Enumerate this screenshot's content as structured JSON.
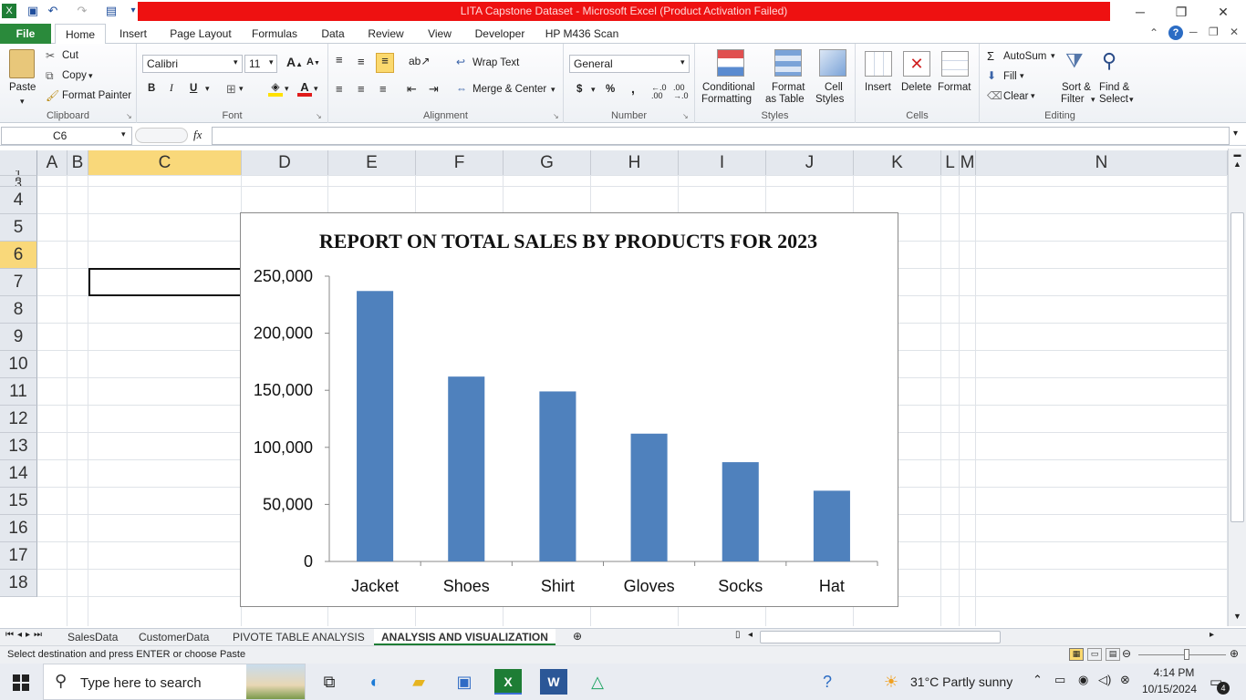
{
  "window": {
    "title": "LITA Capstone Dataset  -  Microsoft Excel (Product Activation Failed)"
  },
  "tabs": [
    {
      "label": "File"
    },
    {
      "label": "Home"
    },
    {
      "label": "Insert"
    },
    {
      "label": "Page Layout"
    },
    {
      "label": "Formulas"
    },
    {
      "label": "Data"
    },
    {
      "label": "Review"
    },
    {
      "label": "View"
    },
    {
      "label": "Developer"
    },
    {
      "label": "HP M436 Scan"
    }
  ],
  "ribbon": {
    "clipboard": {
      "paste": "Paste",
      "cut": "Cut",
      "copy": "Copy",
      "format_painter": "Format Painter",
      "label": "Clipboard"
    },
    "font": {
      "name": "Calibri",
      "size": "11",
      "bold": "B",
      "italic": "I",
      "underline": "U",
      "label": "Font"
    },
    "alignment": {
      "wrap_text": "Wrap Text",
      "merge_center": "Merge & Center",
      "label": "Alignment"
    },
    "number": {
      "format": "General",
      "currency": "$",
      "percent": "%",
      "comma": ",",
      "label": "Number"
    },
    "styles": {
      "conditional1": "Conditional",
      "conditional2": "Formatting",
      "format_table1": "Format",
      "format_table2": "as Table",
      "cell_styles1": "Cell",
      "cell_styles2": "Styles",
      "label": "Styles"
    },
    "cells": {
      "insert": "Insert",
      "delete": "Delete",
      "format": "Format",
      "label": "Cells"
    },
    "editing": {
      "autosum": "AutoSum",
      "fill": "Fill",
      "clear": "Clear",
      "sort1": "Sort &",
      "sort2": "Filter",
      "find1": "Find &",
      "find2": "Select",
      "label": "Editing"
    }
  },
  "formula_bar": {
    "name_box": "C6",
    "fx": "fx",
    "value": ""
  },
  "columns": [
    "A",
    "B",
    "C",
    "D",
    "E",
    "F",
    "G",
    "H",
    "I",
    "J",
    "K",
    "L",
    "M",
    "N"
  ],
  "rows": [
    "1",
    "2",
    "3",
    "4",
    "5",
    "6",
    "7",
    "8",
    "9",
    "10",
    "11",
    "12",
    "13",
    "14",
    "15",
    "16",
    "17",
    "18"
  ],
  "chart_data": {
    "type": "bar",
    "title": "REPORT ON  TOTAL SALES BY PRODUCTS FOR 2023",
    "categories": [
      "Jacket",
      "Shoes",
      "Shirt",
      "Gloves",
      "Socks",
      "Hat"
    ],
    "values": [
      237000,
      162000,
      149000,
      112000,
      87000,
      62000
    ],
    "ylim": [
      0,
      250000
    ],
    "yticks": [
      "0",
      "50,000",
      "100,000",
      "150,000",
      "200,000",
      "250,000"
    ],
    "xlabel": "",
    "ylabel": "",
    "grid": false,
    "legend": "none",
    "bar_color": "#4f81bd"
  },
  "sheets": [
    {
      "label": "SalesData"
    },
    {
      "label": "CustomerData"
    },
    {
      "label": "PIVOTE TABLE ANALYSIS"
    },
    {
      "label": "ANALYSIS AND VISUALIZATION"
    }
  ],
  "status": {
    "message": "Select destination and press ENTER or choose Paste"
  },
  "taskbar": {
    "search_placeholder": "Type here to search",
    "weather": "31°C  Partly sunny",
    "time": "4:14 PM",
    "date": "10/15/2024",
    "notifications": "4"
  }
}
